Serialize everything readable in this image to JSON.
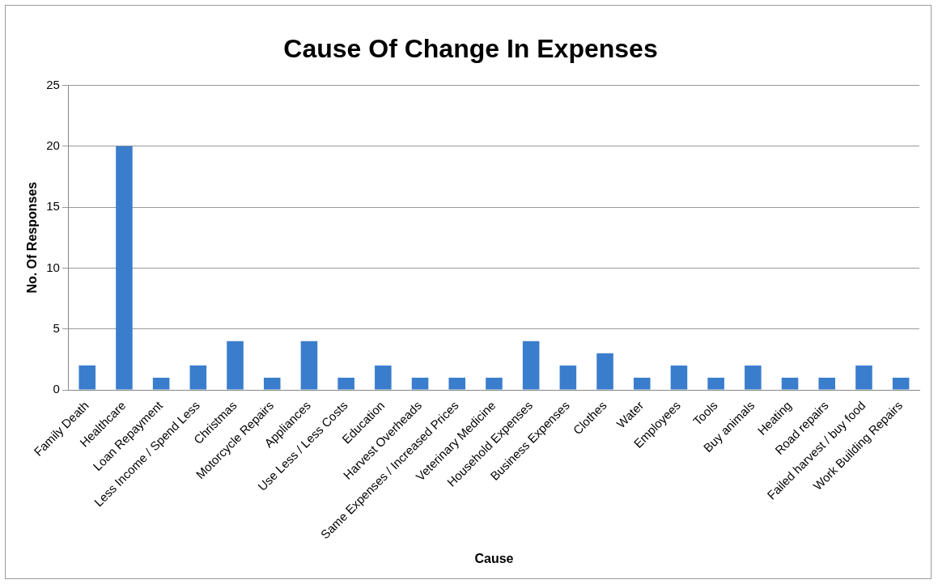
{
  "chart_data": {
    "type": "bar",
    "title": "Cause Of Change In Expenses",
    "xlabel": "Cause",
    "ylabel": "No. Of Responses",
    "categories": [
      "Family Death",
      "Healthcare",
      "Loan Repayment",
      "Less Income / Spend Less",
      "Christmas",
      "Motorcycle Repairs",
      "Appliances",
      "Use Less / Less Costs",
      "Education",
      "Harvest Overheads",
      "Same Expenses / Increased Prices",
      "Veterinary Medicine",
      "Household Expenses",
      "Business Expenses",
      "Clothes",
      "Water",
      "Employees",
      "Tools",
      "Buy animals",
      "Heating",
      "Road repairs",
      "Failed harvest / buy food",
      "Work Building Repairs"
    ],
    "values": [
      2,
      20,
      1,
      2,
      4,
      1,
      4,
      1,
      2,
      1,
      1,
      1,
      4,
      2,
      3,
      1,
      2,
      1,
      2,
      1,
      1,
      2,
      1
    ],
    "color": "#3a7dcc",
    "ylim": [
      0,
      25
    ],
    "yticks": [
      0,
      5,
      10,
      15,
      20,
      25
    ],
    "grid": "y",
    "legend": false
  }
}
